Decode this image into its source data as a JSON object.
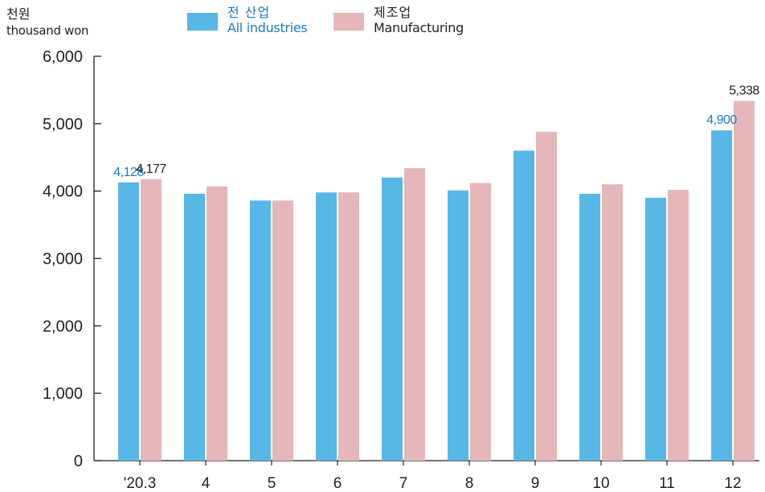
{
  "unit": {
    "korean": "천원",
    "english": "thousand won"
  },
  "colors": {
    "all": "#57b7e7",
    "mfg": "#e6b7b8",
    "label_all": "#1a7cc1",
    "label_mfg": "#231f20",
    "axis": "#231f20"
  },
  "legend": [
    {
      "korean": "전 산업",
      "english": "All industries"
    },
    {
      "korean": "제조업",
      "english": "Manufacturing"
    }
  ],
  "chart_data": {
    "type": "bar",
    "categories": [
      "'20.3",
      "4",
      "5",
      "6",
      "7",
      "8",
      "9",
      "10",
      "11",
      "12"
    ],
    "series": [
      {
        "name": "전 산업 All industries",
        "values": [
          4128,
          3960,
          3860,
          3980,
          4200,
          4010,
          4600,
          3960,
          3900,
          4900
        ]
      },
      {
        "name": "제조업 Manufacturing",
        "values": [
          4177,
          4070,
          3860,
          3980,
          4340,
          4120,
          4880,
          4100,
          4020,
          5338
        ]
      }
    ],
    "data_labels": [
      {
        "series": 0,
        "index": 0,
        "text": "4,128"
      },
      {
        "series": 1,
        "index": 0,
        "text": "4,177"
      },
      {
        "series": 0,
        "index": 9,
        "text": "4,900"
      },
      {
        "series": 1,
        "index": 9,
        "text": "5,338"
      }
    ],
    "y_ticks": [
      "0",
      "1,000",
      "2,000",
      "3,000",
      "4,000",
      "5,000",
      "6,000"
    ],
    "ylim": [
      0,
      6000
    ],
    "grid": false,
    "legend_position": "top"
  }
}
